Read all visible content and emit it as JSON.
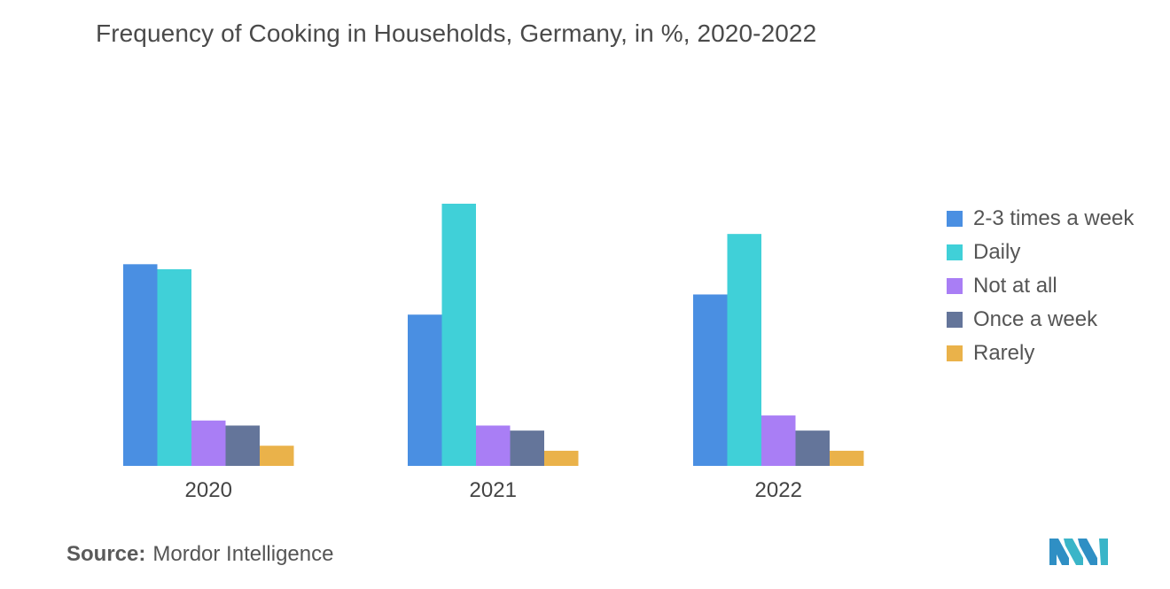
{
  "title": "Frequency of Cooking in Households, Germany, in %, 2020-2022",
  "source": {
    "label": "Source:",
    "text": "Mordor Intelligence"
  },
  "chart_data": {
    "type": "bar",
    "title": "Frequency of Cooking in Households, Germany, in %, 2020-2022",
    "categories": [
      "2020",
      "2021",
      "2022"
    ],
    "series": [
      {
        "name": "2-3 times a week",
        "color": "#4a8fe2",
        "values": [
          40,
          30,
          34
        ]
      },
      {
        "name": "Daily",
        "color": "#40d0d8",
        "values": [
          39,
          52,
          46
        ]
      },
      {
        "name": "Not at all",
        "color": "#a97ef5",
        "values": [
          9,
          8,
          10
        ]
      },
      {
        "name": "Once a week",
        "color": "#64759a",
        "values": [
          8,
          7,
          7
        ]
      },
      {
        "name": "Rarely",
        "color": "#eab24a",
        "values": [
          4,
          3,
          3
        ]
      }
    ],
    "xlabel": "",
    "ylabel": "",
    "ylim": [
      0,
      52
    ],
    "grid": false,
    "legend": "right"
  }
}
